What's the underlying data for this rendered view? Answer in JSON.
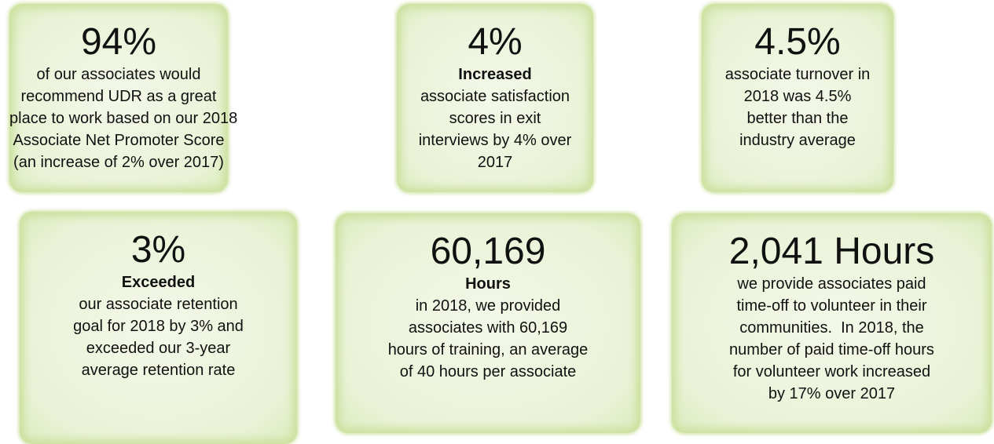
{
  "cards": [
    {
      "headline": "94%",
      "lines": [
        "of our associates would",
        "recommend UDR as a great",
        "place to work based on our 2018",
        "Associate Net Promoter Score",
        "(an increase of 2% over 2017)"
      ]
    },
    {
      "headline": "4%",
      "emphasis": "Increased",
      "lines": [
        "associate satisfaction",
        "scores in exit",
        "interviews by 4% over",
        "2017"
      ]
    },
    {
      "headline": "4.5%",
      "lines": [
        "associate turnover in",
        "2018 was 4.5%",
        "better than the",
        "industry average"
      ]
    },
    {
      "headline": "3%",
      "emphasis": "Exceeded",
      "lines": [
        "our associate retention",
        "goal for 2018 by 3% and",
        "exceeded our 3-year",
        "average retention rate"
      ]
    },
    {
      "headline": "60,169",
      "emphasis": "Hours",
      "lines": [
        "in 2018, we provided",
        "associates with 60,169",
        "hours of training, an average",
        "of 40 hours per associate"
      ]
    },
    {
      "headline": "2,041 Hours",
      "lines": [
        "we provide associates paid",
        "time-off to volunteer in their",
        "communities.  In 2018, the",
        "number of paid time-off hours",
        "for volunteer work increased",
        "by 17% over 2017"
      ]
    }
  ]
}
